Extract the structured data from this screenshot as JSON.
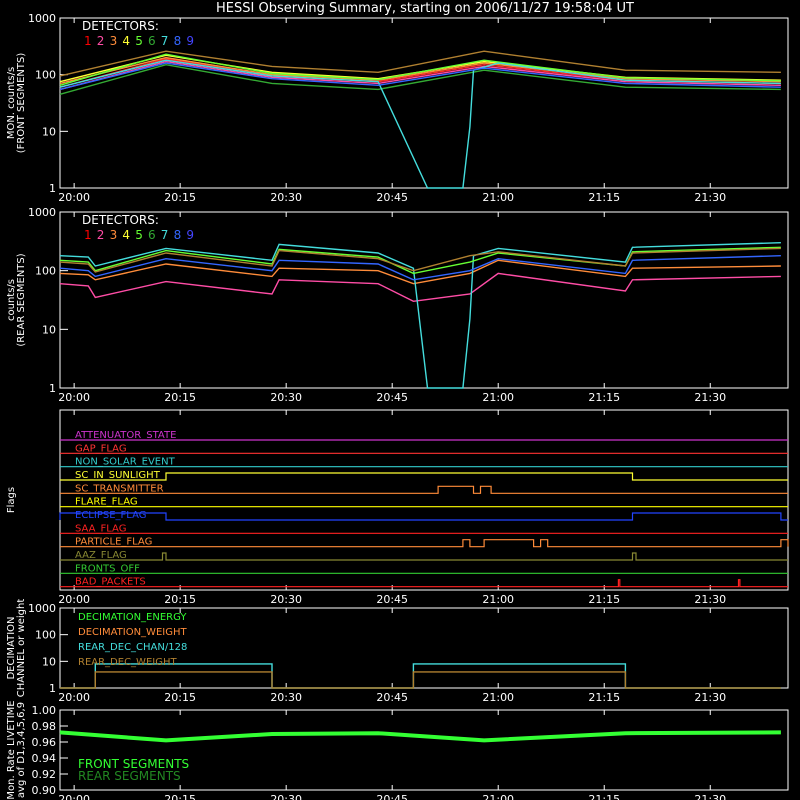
{
  "title": "HESSI Observing Summary, starting on 2006/11/27 19:58:04 UT",
  "colors": {
    "background": "#000000",
    "axes": "#ffffff",
    "det": [
      "#ff2a2a",
      "#ff4da6",
      "#ff8c3a",
      "#ffff33",
      "#66ff33",
      "#33aa33",
      "#44dddd",
      "#3366ff",
      "#4444ff"
    ],
    "detector_label": [
      "#ff0000",
      "#ff4da6",
      "#ff8c3a",
      "#ffff33",
      "#66ff33",
      "#33aa33",
      "#44dddd",
      "#3366ff",
      "#4444ff"
    ],
    "front_live": "#33ff33",
    "rear_live": "#228822"
  },
  "time_ticks": [
    "20:00",
    "20:15",
    "20:30",
    "20:45",
    "21:00",
    "21:15",
    "21:30"
  ],
  "chart_data": [
    {
      "id": "front",
      "type": "line",
      "ylabel": [
        "MON. counts/s",
        "(FRONT SEGMENTS)"
      ],
      "yscale": "log",
      "ylim": [
        1,
        1000
      ],
      "yticks": [
        "1",
        "10",
        "100",
        "1000"
      ],
      "legend_title": "DETECTORS:",
      "legend_numbers": [
        "1",
        "2",
        "3",
        "4",
        "5",
        "6",
        "7",
        "8",
        "9"
      ],
      "minutes_range": [
        0,
        102
      ],
      "series": [
        {
          "color": "#ff2a2a",
          "values": [
            [
              0,
              60
            ],
            [
              15,
              190
            ],
            [
              30,
              95
            ],
            [
              45,
              75
            ],
            [
              60,
              150
            ],
            [
              80,
              80
            ],
            [
              102,
              70
            ]
          ]
        },
        {
          "color": "#ff4da6",
          "values": [
            [
              0,
              55
            ],
            [
              15,
              170
            ],
            [
              30,
              90
            ],
            [
              45,
              70
            ],
            [
              60,
              140
            ],
            [
              80,
              75
            ],
            [
              102,
              65
            ]
          ]
        },
        {
          "color": "#ff8c3a",
          "values": [
            [
              0,
              70
            ],
            [
              15,
              200
            ],
            [
              30,
              100
            ],
            [
              45,
              80
            ],
            [
              60,
              160
            ],
            [
              80,
              85
            ],
            [
              102,
              75
            ]
          ]
        },
        {
          "color": "#ffff33",
          "values": [
            [
              0,
              75
            ],
            [
              15,
              220
            ],
            [
              30,
              110
            ],
            [
              45,
              85
            ],
            [
              60,
              170
            ],
            [
              80,
              90
            ],
            [
              102,
              80
            ]
          ]
        },
        {
          "color": "#66ff33",
          "values": [
            [
              0,
              65
            ],
            [
              15,
              230
            ],
            [
              30,
              105
            ],
            [
              45,
              82
            ],
            [
              60,
              180
            ],
            [
              80,
              88
            ],
            [
              102,
              78
            ]
          ]
        },
        {
          "color": "#33aa33",
          "values": [
            [
              0,
              45
            ],
            [
              15,
              150
            ],
            [
              30,
              70
            ],
            [
              45,
              55
            ],
            [
              60,
              120
            ],
            [
              80,
              60
            ],
            [
              102,
              55
            ]
          ]
        },
        {
          "color": "#44dddd",
          "values": [
            [
              0,
              60
            ],
            [
              15,
              180
            ],
            [
              30,
              95
            ],
            [
              45,
              75
            ],
            [
              52,
              1
            ],
            [
              55,
              1
            ],
            [
              57,
              1
            ],
            [
              58,
              12
            ],
            [
              58.5,
              120
            ],
            [
              62,
              160
            ],
            [
              80,
              80
            ],
            [
              102,
              70
            ]
          ]
        },
        {
          "color": "#3366ff",
          "values": [
            [
              0,
              55
            ],
            [
              15,
              160
            ],
            [
              30,
              85
            ],
            [
              45,
              65
            ],
            [
              60,
              130
            ],
            [
              80,
              70
            ],
            [
              102,
              60
            ]
          ]
        },
        {
          "color": "#b08030",
          "values": [
            [
              0,
              95
            ],
            [
              15,
              260
            ],
            [
              30,
              140
            ],
            [
              45,
              110
            ],
            [
              60,
              260
            ],
            [
              80,
              120
            ],
            [
              102,
              110
            ]
          ]
        }
      ]
    },
    {
      "id": "rear",
      "type": "line",
      "ylabel": [
        "counts/s",
        "(REAR SEGMENTS)"
      ],
      "yscale": "log",
      "ylim": [
        1,
        1000
      ],
      "yticks": [
        "1",
        "10",
        "100",
        "1000"
      ],
      "legend_title": "DETECTORS:",
      "legend_numbers": [
        "1",
        "2",
        "3",
        "4",
        "5",
        "6",
        "7",
        "8",
        "9"
      ],
      "minutes_range": [
        0,
        102
      ],
      "series": [
        {
          "color": "#ff4da6",
          "values": [
            [
              0,
              60
            ],
            [
              4,
              55
            ],
            [
              5,
              35
            ],
            [
              15,
              65
            ],
            [
              30,
              40
            ],
            [
              31,
              70
            ],
            [
              45,
              60
            ],
            [
              50,
              30
            ],
            [
              58,
              40
            ],
            [
              62,
              90
            ],
            [
              80,
              45
            ],
            [
              81,
              70
            ],
            [
              102,
              80
            ]
          ]
        },
        {
          "color": "#ff8c3a",
          "values": [
            [
              0,
              90
            ],
            [
              4,
              85
            ],
            [
              5,
              70
            ],
            [
              15,
              130
            ],
            [
              30,
              80
            ],
            [
              31,
              110
            ],
            [
              45,
              100
            ],
            [
              50,
              60
            ],
            [
              58,
              90
            ],
            [
              62,
              150
            ],
            [
              80,
              80
            ],
            [
              81,
              110
            ],
            [
              102,
              120
            ]
          ]
        },
        {
          "color": "#44dddd",
          "values": [
            [
              0,
              180
            ],
            [
              4,
              170
            ],
            [
              5,
              120
            ],
            [
              15,
              240
            ],
            [
              30,
              150
            ],
            [
              31,
              280
            ],
            [
              45,
              200
            ],
            [
              50,
              110
            ],
            [
              52,
              1
            ],
            [
              57,
              1
            ],
            [
              58,
              15
            ],
            [
              58.5,
              180
            ],
            [
              62,
              240
            ],
            [
              80,
              140
            ],
            [
              81,
              250
            ],
            [
              102,
              300
            ]
          ]
        },
        {
          "color": "#3366ff",
          "values": [
            [
              0,
              110
            ],
            [
              4,
              100
            ],
            [
              5,
              80
            ],
            [
              15,
              160
            ],
            [
              30,
              100
            ],
            [
              31,
              150
            ],
            [
              45,
              130
            ],
            [
              50,
              70
            ],
            [
              58,
              100
            ],
            [
              62,
              160
            ],
            [
              80,
              90
            ],
            [
              81,
              150
            ],
            [
              102,
              180
            ]
          ]
        },
        {
          "color": "#66ff33",
          "values": [
            [
              0,
              150
            ],
            [
              4,
              140
            ],
            [
              5,
              100
            ],
            [
              15,
              220
            ],
            [
              30,
              130
            ],
            [
              31,
              230
            ],
            [
              45,
              170
            ],
            [
              50,
              90
            ],
            [
              58,
              140
            ],
            [
              62,
              200
            ],
            [
              80,
              120
            ],
            [
              81,
              210
            ],
            [
              102,
              250
            ]
          ]
        },
        {
          "color": "#b08030",
          "values": [
            [
              0,
              140
            ],
            [
              4,
              130
            ],
            [
              5,
              95
            ],
            [
              15,
              200
            ],
            [
              30,
              120
            ],
            [
              31,
              220
            ],
            [
              45,
              160
            ],
            [
              50,
              100
            ],
            [
              58,
              180
            ],
            [
              62,
              210
            ],
            [
              80,
              120
            ],
            [
              81,
              200
            ],
            [
              102,
              240
            ]
          ]
        }
      ]
    },
    {
      "id": "flags",
      "type": "line",
      "ylabel": [
        "Flags"
      ],
      "labels": [
        {
          "name": "ATTENUATOR_STATE",
          "color": "#cc33cc",
          "high": []
        },
        {
          "name": "GAP_FLAG",
          "color": "#ff3333",
          "high": []
        },
        {
          "name": "NON_SOLAR_EVENT",
          "color": "#33cccc",
          "high": []
        },
        {
          "name": "SC_IN_SUNLIGHT",
          "color": "#ffff33",
          "high": [
            [
              15,
              81
            ]
          ]
        },
        {
          "name": "SC_TRANSMITTER",
          "color": "#ff8c3a",
          "high": [
            [
              53.5,
              58.5
            ],
            [
              59.5,
              61
            ]
          ]
        },
        {
          "name": "FLARE_FLAG",
          "color": "#ffff00",
          "high": []
        },
        {
          "name": "ECLIPSE_FLAG",
          "color": "#2244ff",
          "high": [
            [
              0,
              15
            ],
            [
              81,
              102
            ]
          ]
        },
        {
          "name": "SAA_FLAG",
          "color": "#ff2222",
          "high": []
        },
        {
          "name": "PARTICLE_FLAG",
          "color": "#ff8c3a",
          "high": [
            [
              57,
              58
            ],
            [
              60,
              67
            ],
            [
              68,
              69
            ],
            [
              102,
              103
            ]
          ]
        },
        {
          "name": "AAZ_FLAG",
          "color": "#888833",
          "high": [
            [
              14.5,
              15
            ],
            [
              81,
              81.5
            ]
          ]
        },
        {
          "name": "FRONTS_OFF",
          "color": "#33cc33",
          "high": []
        },
        {
          "name": "BAD_PACKETS",
          "color": "#ff2222",
          "high": [
            [
              79,
              79.2
            ],
            [
              96,
              96.2
            ]
          ]
        }
      ]
    },
    {
      "id": "decimation",
      "type": "line",
      "ylabel": [
        "DECIMATION",
        "CHANNEL or weight"
      ],
      "yscale": "log",
      "ylim": [
        1,
        1000
      ],
      "yticks": [
        "1",
        "10",
        "100",
        "1000"
      ],
      "legend": [
        {
          "name": "DECIMATION_ENERGY",
          "color": "#33ff33"
        },
        {
          "name": "DECIMATION_WEIGHT",
          "color": "#ff8c3a"
        },
        {
          "name": "REAR_DEC_CHAN/128",
          "color": "#44dddd"
        },
        {
          "name": "REAR_DEC_WEIGHT",
          "color": "#b08030"
        }
      ],
      "series": [
        {
          "color": "#44dddd",
          "values": [
            [
              0,
              1
            ],
            [
              5,
              1
            ],
            [
              5,
              8
            ],
            [
              30,
              8
            ],
            [
              30,
              1
            ],
            [
              50,
              1
            ],
            [
              50,
              8
            ],
            [
              80,
              8
            ],
            [
              80,
              1
            ],
            [
              102,
              1
            ]
          ]
        },
        {
          "color": "#b08030",
          "values": [
            [
              0,
              1
            ],
            [
              5,
              1
            ],
            [
              5,
              4
            ],
            [
              30,
              4
            ],
            [
              30,
              1
            ],
            [
              50,
              1
            ],
            [
              50,
              4
            ],
            [
              80,
              4
            ],
            [
              80,
              1
            ],
            [
              102,
              1
            ]
          ]
        }
      ]
    },
    {
      "id": "livetime",
      "type": "line",
      "ylabel": [
        "Mon. Rate LIVETIME",
        "avg of D1,3,4,5,6,9"
      ],
      "ylim": [
        0.9,
        1.0
      ],
      "yticks": [
        "0.90",
        "0.92",
        "0.94",
        "0.96",
        "0.98",
        "1.00"
      ],
      "legend": [
        {
          "name": "FRONT SEGMENTS",
          "color": "#33ff33"
        },
        {
          "name": "REAR SEGMENTS",
          "color": "#228822"
        }
      ],
      "series": [
        {
          "color": "#33ff33",
          "values": [
            [
              0,
              0.972
            ],
            [
              15,
              0.962
            ],
            [
              30,
              0.97
            ],
            [
              45,
              0.971
            ],
            [
              60,
              0.962
            ],
            [
              80,
              0.971
            ],
            [
              102,
              0.972
            ]
          ]
        }
      ]
    }
  ]
}
